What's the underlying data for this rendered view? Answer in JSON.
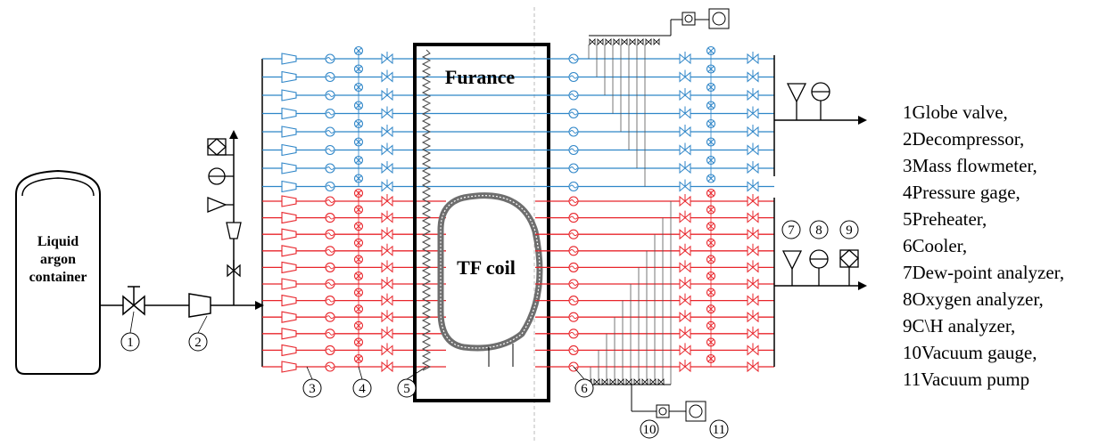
{
  "labels": {
    "container": [
      "Liquid",
      "argon",
      "container"
    ],
    "furnace": "Furance",
    "coil": "TF coil"
  },
  "component_numbers": [
    "1",
    "2",
    "3",
    "4",
    "5",
    "6",
    "7",
    "8",
    "9",
    "10",
    "11"
  ],
  "legend": [
    "1Globe valve,",
    "2Decompressor,",
    "3Mass flowmeter,",
    "4Pressure gage,",
    "5Preheater,",
    "6Cooler,",
    "7Dew-point analyzer,",
    "8Oxygen analyzer,",
    "9C\\H analyzer,",
    "10Vacuum gauge,",
    "11Vacuum pump"
  ],
  "colors": {
    "furnace_lines": "#2f86c8",
    "coil_lines": "#e8252b",
    "line": "#000000",
    "coil_fill": "#8a8a8a"
  },
  "line_counts": {
    "blue": 8,
    "red": 11
  }
}
